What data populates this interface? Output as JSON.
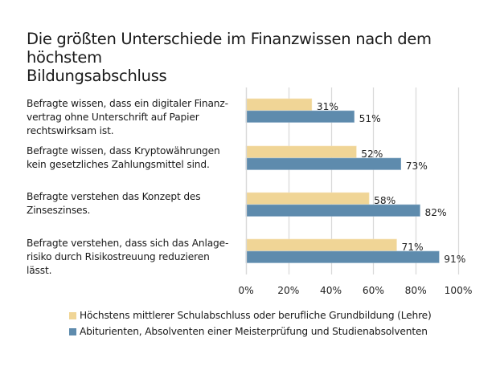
{
  "chart_data": {
    "type": "bar",
    "orientation": "horizontal",
    "title": "Die größten Unterschiede im Finanzwissen nach dem höchstem Bildungsabschluss",
    "title_lines": [
      "Die größten Unterschiede im Finanzwissen nach dem höchstem",
      "Bildungsabschluss"
    ],
    "categories": [
      "Befragte wissen, dass ein digitaler Finanzvertrag ohne Unterschrift auf Papier rechtswirksam ist.",
      "Befragte wissen, dass Kryptowährungen kein gesetzliches Zahlungsmittel sind.",
      "Befragte verstehen das Konzept des Zinseszinses.",
      "Befragte verstehen, dass sich das Anlagerisiko durch Risikostreuung reduzieren lässt."
    ],
    "category_lines": [
      [
        "Befragte wissen, dass ein digitaler Finanz-",
        "vertrag ohne Unterschrift auf Papier",
        "rechtswirksam ist."
      ],
      [
        "Befragte wissen, dass Kryptowährungen",
        "kein gesetzliches Zahlungsmittel sind."
      ],
      [
        "Befragte verstehen das Konzept des",
        "Zinseszinses."
      ],
      [
        "Befragte verstehen, dass sich das Anlage-",
        "risiko durch Risikostreuung reduzieren",
        "lässt."
      ]
    ],
    "series": [
      {
        "name": "Höchstens mittlerer Schulabschluss oder berufliche Grundbildung (Lehre)",
        "color": "#F0D596",
        "values": [
          31,
          52,
          58,
          71
        ],
        "labels": [
          "31%",
          "52%",
          "58%",
          "71%"
        ]
      },
      {
        "name": "Abiturienten, Absolventen einer Meisterprüfung und Studienabsolventen",
        "color": "#5E8BAD",
        "values": [
          51,
          73,
          82,
          91
        ],
        "labels": [
          "51%",
          "73%",
          "82%",
          "91%"
        ]
      }
    ],
    "xlim": [
      0,
      100
    ],
    "xticks": [
      0,
      20,
      40,
      60,
      80,
      100
    ],
    "xtick_labels": [
      "0%",
      "20%",
      "40%",
      "60%",
      "80%",
      "100%"
    ],
    "xlabel": "",
    "ylabel": "",
    "grid": "vertical",
    "grid_color": "#D9D9D9",
    "legend_position": "bottom"
  }
}
